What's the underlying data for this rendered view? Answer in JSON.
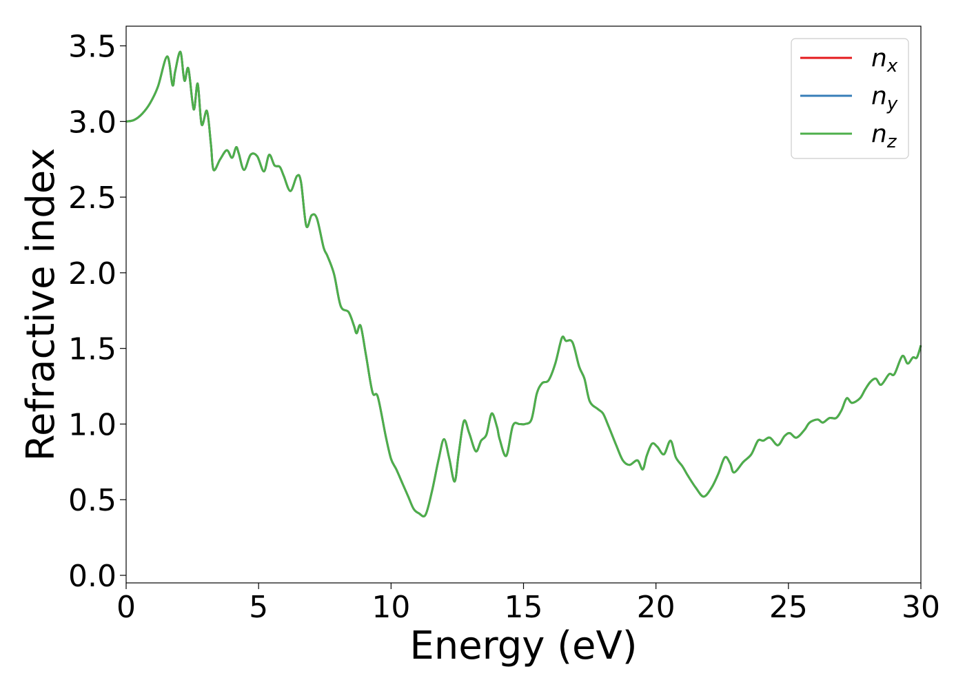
{
  "chart_data": {
    "type": "line",
    "title": "",
    "xlabel": "Energy (eV)",
    "ylabel": "Refractive index",
    "xlim": [
      0,
      30
    ],
    "ylim": [
      -0.05,
      3.63
    ],
    "xticks": [
      0,
      5,
      10,
      15,
      20,
      25,
      30
    ],
    "xtick_labels": [
      "0",
      "5",
      "10",
      "15",
      "20",
      "25",
      "30"
    ],
    "yticks": [
      0.0,
      0.5,
      1.0,
      1.5,
      2.0,
      2.5,
      3.0,
      3.5
    ],
    "ytick_labels": [
      "0.0",
      "0.5",
      "1.0",
      "1.5",
      "2.0",
      "2.5",
      "3.0",
      "3.5"
    ],
    "grid": false,
    "legend_position": "top-right",
    "x": [
      0.0,
      0.3,
      0.6,
      0.9,
      1.2,
      1.55,
      1.75,
      1.85,
      2.05,
      2.2,
      2.35,
      2.55,
      2.7,
      2.85,
      3.05,
      3.2,
      3.3,
      3.55,
      3.8,
      4.0,
      4.15,
      4.25,
      4.45,
      4.7,
      4.95,
      5.2,
      5.4,
      5.6,
      5.8,
      5.95,
      6.2,
      6.45,
      6.6,
      6.8,
      7.0,
      7.2,
      7.45,
      7.6,
      7.85,
      8.1,
      8.4,
      8.6,
      8.7,
      8.85,
      9.05,
      9.3,
      9.5,
      9.8,
      10.0,
      10.2,
      10.45,
      10.65,
      10.85,
      11.05,
      11.3,
      11.55,
      11.8,
      12.0,
      12.2,
      12.4,
      12.55,
      12.75,
      12.95,
      13.2,
      13.4,
      13.6,
      13.8,
      14.0,
      14.1,
      14.35,
      14.6,
      14.85,
      15.05,
      15.3,
      15.5,
      15.7,
      15.95,
      16.2,
      16.45,
      16.6,
      16.85,
      17.1,
      17.3,
      17.5,
      17.8,
      18.0,
      18.2,
      18.5,
      18.75,
      19.0,
      19.3,
      19.5,
      19.65,
      19.85,
      20.05,
      20.3,
      20.55,
      20.75,
      21.0,
      21.2,
      21.5,
      21.8,
      22.1,
      22.35,
      22.6,
      22.8,
      22.95,
      23.3,
      23.6,
      23.85,
      24.05,
      24.3,
      24.6,
      24.85,
      25.05,
      25.3,
      25.6,
      25.8,
      26.1,
      26.3,
      26.55,
      26.8,
      27.0,
      27.2,
      27.4,
      27.7,
      27.9,
      28.1,
      28.3,
      28.5,
      28.8,
      29.0,
      29.3,
      29.5,
      29.7,
      29.85,
      30.0
    ],
    "series": [
      {
        "name": "n_x",
        "color": "#e41a1c",
        "values": [
          3.0,
          3.01,
          3.05,
          3.12,
          3.23,
          3.43,
          3.24,
          3.33,
          3.46,
          3.27,
          3.35,
          3.08,
          3.25,
          2.98,
          3.07,
          2.85,
          2.68,
          2.75,
          2.81,
          2.76,
          2.83,
          2.79,
          2.68,
          2.78,
          2.77,
          2.67,
          2.78,
          2.71,
          2.7,
          2.64,
          2.54,
          2.64,
          2.6,
          2.31,
          2.38,
          2.36,
          2.17,
          2.11,
          1.99,
          1.78,
          1.74,
          1.65,
          1.6,
          1.65,
          1.46,
          1.21,
          1.18,
          0.92,
          0.77,
          0.7,
          0.6,
          0.52,
          0.44,
          0.41,
          0.4,
          0.56,
          0.77,
          0.9,
          0.77,
          0.62,
          0.8,
          1.02,
          0.94,
          0.82,
          0.89,
          0.93,
          1.07,
          0.98,
          0.9,
          0.79,
          0.99,
          1.0,
          1.0,
          1.03,
          1.2,
          1.27,
          1.29,
          1.4,
          1.57,
          1.55,
          1.54,
          1.38,
          1.3,
          1.15,
          1.1,
          1.07,
          0.99,
          0.86,
          0.76,
          0.73,
          0.76,
          0.7,
          0.79,
          0.87,
          0.85,
          0.8,
          0.89,
          0.78,
          0.72,
          0.66,
          0.58,
          0.52,
          0.58,
          0.67,
          0.78,
          0.74,
          0.68,
          0.75,
          0.8,
          0.89,
          0.89,
          0.91,
          0.86,
          0.92,
          0.94,
          0.91,
          0.96,
          1.01,
          1.03,
          1.01,
          1.04,
          1.04,
          1.09,
          1.17,
          1.14,
          1.17,
          1.23,
          1.28,
          1.3,
          1.26,
          1.33,
          1.33,
          1.45,
          1.4,
          1.44,
          1.44,
          1.52
        ]
      },
      {
        "name": "n_y",
        "color": "#377eb8",
        "values": [
          3.0,
          3.01,
          3.05,
          3.12,
          3.23,
          3.43,
          3.24,
          3.33,
          3.46,
          3.27,
          3.35,
          3.08,
          3.25,
          2.98,
          3.07,
          2.85,
          2.68,
          2.75,
          2.81,
          2.76,
          2.83,
          2.79,
          2.68,
          2.78,
          2.77,
          2.67,
          2.78,
          2.71,
          2.7,
          2.64,
          2.54,
          2.64,
          2.6,
          2.31,
          2.38,
          2.36,
          2.17,
          2.11,
          1.99,
          1.78,
          1.74,
          1.65,
          1.6,
          1.65,
          1.46,
          1.21,
          1.18,
          0.92,
          0.77,
          0.7,
          0.6,
          0.52,
          0.44,
          0.41,
          0.4,
          0.56,
          0.77,
          0.9,
          0.77,
          0.62,
          0.8,
          1.02,
          0.94,
          0.82,
          0.89,
          0.93,
          1.07,
          0.98,
          0.9,
          0.79,
          0.99,
          1.0,
          1.0,
          1.03,
          1.2,
          1.27,
          1.29,
          1.4,
          1.57,
          1.55,
          1.54,
          1.38,
          1.3,
          1.15,
          1.1,
          1.07,
          0.99,
          0.86,
          0.76,
          0.73,
          0.76,
          0.7,
          0.79,
          0.87,
          0.85,
          0.8,
          0.89,
          0.78,
          0.72,
          0.66,
          0.58,
          0.52,
          0.58,
          0.67,
          0.78,
          0.74,
          0.68,
          0.75,
          0.8,
          0.89,
          0.89,
          0.91,
          0.86,
          0.92,
          0.94,
          0.91,
          0.96,
          1.01,
          1.03,
          1.01,
          1.04,
          1.04,
          1.09,
          1.17,
          1.14,
          1.17,
          1.23,
          1.28,
          1.3,
          1.26,
          1.33,
          1.33,
          1.45,
          1.4,
          1.44,
          1.44,
          1.52
        ]
      },
      {
        "name": "n_z",
        "color": "#4daf4a",
        "values": [
          3.0,
          3.01,
          3.05,
          3.12,
          3.23,
          3.43,
          3.24,
          3.33,
          3.46,
          3.27,
          3.35,
          3.08,
          3.25,
          2.98,
          3.07,
          2.85,
          2.68,
          2.75,
          2.81,
          2.76,
          2.83,
          2.79,
          2.68,
          2.78,
          2.77,
          2.67,
          2.78,
          2.71,
          2.7,
          2.64,
          2.54,
          2.64,
          2.6,
          2.31,
          2.38,
          2.36,
          2.17,
          2.11,
          1.99,
          1.78,
          1.74,
          1.65,
          1.6,
          1.65,
          1.46,
          1.21,
          1.18,
          0.92,
          0.77,
          0.7,
          0.6,
          0.52,
          0.44,
          0.41,
          0.4,
          0.56,
          0.77,
          0.9,
          0.77,
          0.62,
          0.8,
          1.02,
          0.94,
          0.82,
          0.89,
          0.93,
          1.07,
          0.98,
          0.9,
          0.79,
          0.99,
          1.0,
          1.0,
          1.03,
          1.2,
          1.27,
          1.29,
          1.4,
          1.57,
          1.55,
          1.54,
          1.38,
          1.3,
          1.15,
          1.1,
          1.07,
          0.99,
          0.86,
          0.76,
          0.73,
          0.76,
          0.7,
          0.79,
          0.87,
          0.85,
          0.8,
          0.89,
          0.78,
          0.72,
          0.66,
          0.58,
          0.52,
          0.58,
          0.67,
          0.78,
          0.74,
          0.68,
          0.75,
          0.8,
          0.89,
          0.89,
          0.91,
          0.86,
          0.92,
          0.94,
          0.91,
          0.96,
          1.01,
          1.03,
          1.01,
          1.04,
          1.04,
          1.09,
          1.17,
          1.14,
          1.17,
          1.23,
          1.28,
          1.3,
          1.26,
          1.33,
          1.33,
          1.45,
          1.4,
          1.44,
          1.44,
          1.52
        ]
      }
    ],
    "legend": [
      {
        "base": "n",
        "sub": "x",
        "color": "#e41a1c"
      },
      {
        "base": "n",
        "sub": "y",
        "color": "#377eb8"
      },
      {
        "base": "n",
        "sub": "z",
        "color": "#4daf4a"
      }
    ]
  }
}
